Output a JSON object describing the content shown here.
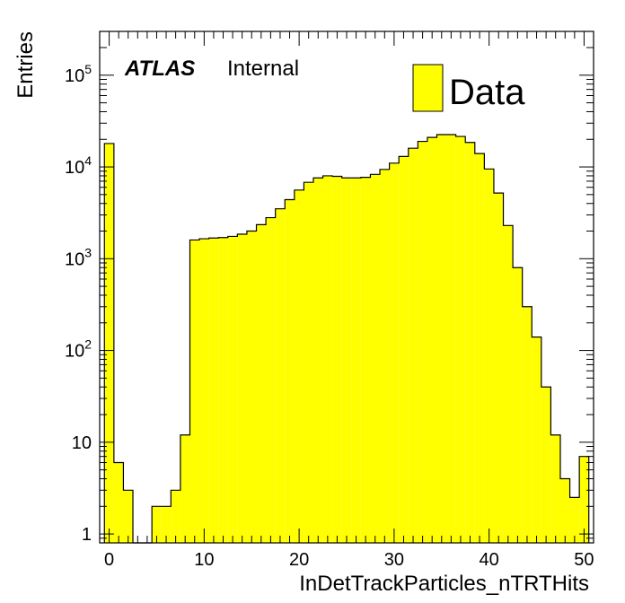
{
  "chart_data": {
    "type": "bar",
    "xlabel": "InDetTrackParticles_nTRTHits",
    "ylabel": "Entries",
    "xlim": [
      -1,
      51
    ],
    "ylim": [
      0.8,
      300000
    ],
    "yscale": "log",
    "grid": false,
    "x_ticks": [
      {
        "value": 0,
        "label": "0"
      },
      {
        "value": 10,
        "label": "10"
      },
      {
        "value": 20,
        "label": "20"
      },
      {
        "value": 30,
        "label": "30"
      },
      {
        "value": 40,
        "label": "40"
      },
      {
        "value": 50,
        "label": "50"
      }
    ],
    "y_ticks": [
      {
        "value": 1,
        "mantissa": "1",
        "exp": ""
      },
      {
        "value": 10,
        "mantissa": "10",
        "exp": ""
      },
      {
        "value": 100,
        "mantissa": "10",
        "exp": "2"
      },
      {
        "value": 1000,
        "mantissa": "10",
        "exp": "3"
      },
      {
        "value": 10000,
        "mantissa": "10",
        "exp": "4"
      },
      {
        "value": 100000,
        "mantissa": "10",
        "exp": "5"
      }
    ],
    "bin_edges": [
      -0.5,
      0.5,
      1.5,
      2.5,
      3.5,
      4.5,
      5.5,
      6.5,
      7.5,
      8.5,
      9.5,
      10.5,
      11.5,
      12.5,
      13.5,
      14.5,
      15.5,
      16.5,
      17.5,
      18.5,
      19.5,
      20.5,
      21.5,
      22.5,
      23.5,
      24.5,
      25.5,
      26.5,
      27.5,
      28.5,
      29.5,
      30.5,
      31.5,
      32.5,
      33.5,
      34.5,
      35.5,
      36.5,
      37.5,
      38.5,
      39.5,
      40.5,
      41.5,
      42.5,
      43.5,
      44.5,
      45.5,
      46.5,
      47.5,
      48.5,
      49.5,
      50.5
    ],
    "series": [
      {
        "name": "Data",
        "color": "#ffff00",
        "values": [
          18000,
          6,
          3,
          0,
          0,
          2,
          2,
          3,
          12,
          1600,
          1650,
          1680,
          1700,
          1750,
          1850,
          2000,
          2350,
          2800,
          3500,
          4400,
          5600,
          6800,
          7600,
          8000,
          7900,
          7600,
          7600,
          7700,
          8300,
          9400,
          11000,
          13000,
          16000,
          19000,
          21000,
          22500,
          22500,
          21500,
          18500,
          14000,
          9500,
          5200,
          2300,
          800,
          300,
          140,
          40,
          12,
          4,
          2.5,
          7
        ]
      }
    ]
  },
  "annotations": {
    "atlas": "ATLAS",
    "internal": "Internal"
  },
  "legend": {
    "position": "top-right",
    "entries": [
      {
        "label": "Data",
        "color": "#ffff00"
      }
    ]
  }
}
